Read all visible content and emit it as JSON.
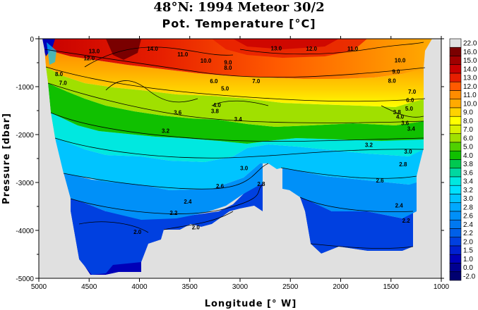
{
  "chart_data": {
    "type": "heatmap",
    "title": "48°N: 1994 Meteor 30/2",
    "subtitle": "Pot. Temperature [°C]",
    "xlabel": "Longitude [° W]",
    "ylabel": "Pressure [dbar]",
    "xlim": [
      5000,
      1000
    ],
    "ylim": [
      0,
      -5000
    ],
    "x_ticks": [
      "5000",
      "4500",
      "4000",
      "3500",
      "3000",
      "2500",
      "2000",
      "1500",
      "1000"
    ],
    "y_ticks": [
      "0",
      "-1000",
      "-2000",
      "-3000",
      "-4000",
      "-5000"
    ],
    "colorbar_levels": [
      "22.0",
      "16.0",
      "15.0",
      "14.0",
      "13.0",
      "12.0",
      "11.0",
      "10.0",
      "9.0",
      "8.0",
      "7.0",
      "6.0",
      "5.0",
      "4.0",
      "3.8",
      "3.6",
      "3.4",
      "3.2",
      "3.0",
      "2.8",
      "2.6",
      "2.4",
      "2.2",
      "2.0",
      "1.5",
      "1.0",
      "0.0",
      "-2.0"
    ],
    "colorbar_colors": [
      "#e0e0e0",
      "#7a0000",
      "#a00000",
      "#c80000",
      "#e61e00",
      "#ff5a00",
      "#ff8c00",
      "#ffaa00",
      "#ffd200",
      "#ffff00",
      "#d8f000",
      "#a0e000",
      "#50d000",
      "#10c000",
      "#00c850",
      "#00d8a0",
      "#00e8e0",
      "#00e0ff",
      "#00c4ff",
      "#00a8ff",
      "#0090f8",
      "#0078f0",
      "#0060e8",
      "#0040e0",
      "#0020d0",
      "#0000b8",
      "#000090",
      "#000070"
    ],
    "contour_labels": [
      {
        "text": "13.0",
        "lon": 4450,
        "p": -300
      },
      {
        "text": "12.0",
        "lon": 4500,
        "p": -450
      },
      {
        "text": "14.0",
        "lon": 3870,
        "p": -250
      },
      {
        "text": "13.0",
        "lon": 2640,
        "p": -240
      },
      {
        "text": "12.0",
        "lon": 2290,
        "p": -250
      },
      {
        "text": "11.0",
        "lon": 1880,
        "p": -250
      },
      {
        "text": "11.0",
        "lon": 3570,
        "p": -370
      },
      {
        "text": "10.0",
        "lon": 3340,
        "p": -500
      },
      {
        "text": "9.0",
        "lon": 3120,
        "p": -540
      },
      {
        "text": "8.0",
        "lon": 3120,
        "p": -650
      },
      {
        "text": "10.0",
        "lon": 1410,
        "p": -490
      },
      {
        "text": "9.0",
        "lon": 1450,
        "p": -730
      },
      {
        "text": "8.0",
        "lon": 1490,
        "p": -920
      },
      {
        "text": "8.0",
        "lon": 4800,
        "p": -780
      },
      {
        "text": "7.0",
        "lon": 4760,
        "p": -960
      },
      {
        "text": "7.0",
        "lon": 2840,
        "p": -930
      },
      {
        "text": "6.0",
        "lon": 3260,
        "p": -930
      },
      {
        "text": "5.0",
        "lon": 3150,
        "p": -1080
      },
      {
        "text": "7.0",
        "lon": 1290,
        "p": -1150
      },
      {
        "text": "6.0",
        "lon": 1310,
        "p": -1320
      },
      {
        "text": "5.0",
        "lon": 1320,
        "p": -1500
      },
      {
        "text": "4.0",
        "lon": 3230,
        "p": -1430
      },
      {
        "text": "3.8",
        "lon": 3250,
        "p": -1550
      },
      {
        "text": "3.6",
        "lon": 3620,
        "p": -1580
      },
      {
        "text": "3.4",
        "lon": 3020,
        "p": -1720
      },
      {
        "text": "3.8",
        "lon": 1440,
        "p": -1570
      },
      {
        "text": "4.0",
        "lon": 1410,
        "p": -1670
      },
      {
        "text": "3.6",
        "lon": 1360,
        "p": -1800
      },
      {
        "text": "3.4",
        "lon": 1300,
        "p": -1920
      },
      {
        "text": "3.2",
        "lon": 3740,
        "p": -1960
      },
      {
        "text": "3.2",
        "lon": 1720,
        "p": -2260
      },
      {
        "text": "3.0",
        "lon": 1330,
        "p": -2400
      },
      {
        "text": "2.8",
        "lon": 1380,
        "p": -2660
      },
      {
        "text": "3.0",
        "lon": 2960,
        "p": -2740
      },
      {
        "text": "2.8",
        "lon": 2790,
        "p": -3070
      },
      {
        "text": "2.6",
        "lon": 3200,
        "p": -3120
      },
      {
        "text": "2.6",
        "lon": 1610,
        "p": -3000
      },
      {
        "text": "2.4",
        "lon": 3520,
        "p": -3440
      },
      {
        "text": "2.4",
        "lon": 1420,
        "p": -3520
      },
      {
        "text": "2.2",
        "lon": 3660,
        "p": -3680
      },
      {
        "text": "2.2",
        "lon": 1350,
        "p": -3840
      },
      {
        "text": "2.0",
        "lon": 4020,
        "p": -4070
      },
      {
        "text": "2.0",
        "lon": 3440,
        "p": -3980
      }
    ]
  }
}
